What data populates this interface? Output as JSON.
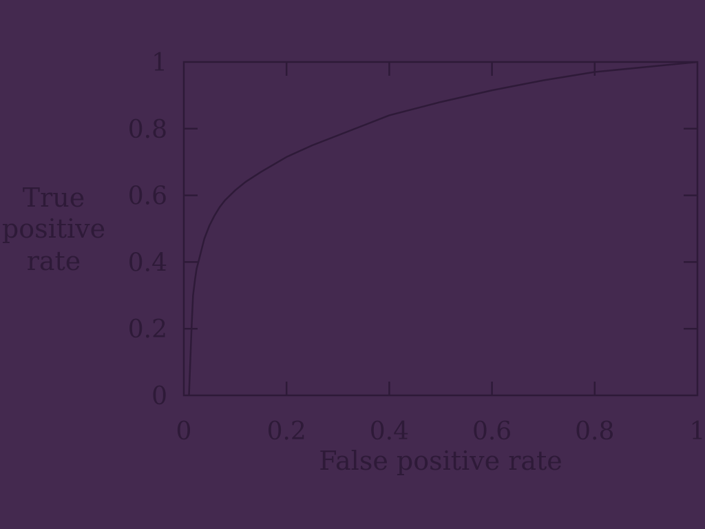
{
  "colors": {
    "background": "#44294f",
    "foreground": "#2e1a38"
  },
  "chart_data": {
    "type": "line",
    "xlabel": "False positive rate",
    "ylabel_lines": [
      "True",
      "positive",
      "rate"
    ],
    "xlim": [
      0,
      1
    ],
    "ylim": [
      0,
      1
    ],
    "xticks": [
      {
        "value": 0,
        "label": "0"
      },
      {
        "value": 0.2,
        "label": "0.2"
      },
      {
        "value": 0.4,
        "label": "0.4"
      },
      {
        "value": 0.6,
        "label": "0.6"
      },
      {
        "value": 0.8,
        "label": "0.8"
      },
      {
        "value": 1,
        "label": "1"
      }
    ],
    "yticks": [
      {
        "value": 0,
        "label": "0"
      },
      {
        "value": 0.2,
        "label": "0.2"
      },
      {
        "value": 0.4,
        "label": "0.4"
      },
      {
        "value": 0.6,
        "label": "0.6"
      },
      {
        "value": 0.8,
        "label": "0.8"
      },
      {
        "value": 1,
        "label": "1"
      }
    ],
    "grid": false,
    "series": [
      {
        "x": [
          0.01,
          0.015,
          0.018,
          0.022,
          0.025,
          0.03,
          0.035,
          0.04,
          0.05,
          0.06,
          0.07,
          0.08,
          0.1,
          0.12,
          0.15,
          0.2,
          0.25,
          0.3,
          0.35,
          0.4,
          0.5,
          0.6,
          0.7,
          0.8,
          0.9,
          1.0
        ],
        "y": [
          0.0,
          0.2,
          0.3,
          0.35,
          0.38,
          0.41,
          0.44,
          0.47,
          0.51,
          0.54,
          0.565,
          0.585,
          0.615,
          0.64,
          0.67,
          0.715,
          0.75,
          0.78,
          0.81,
          0.84,
          0.88,
          0.915,
          0.945,
          0.97,
          0.985,
          1.0
        ]
      }
    ]
  }
}
